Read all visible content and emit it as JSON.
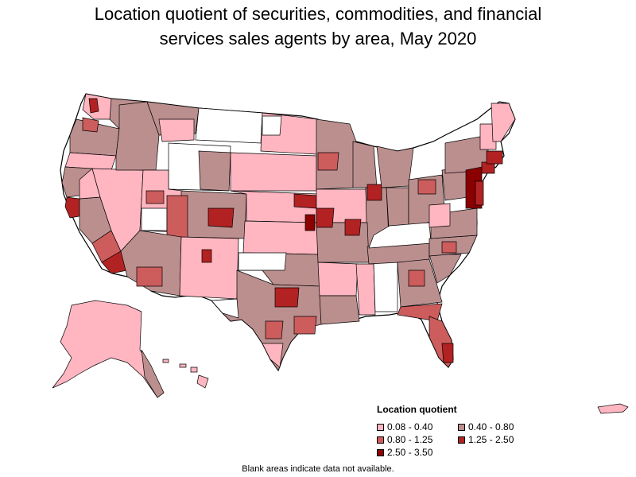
{
  "title_line1": "Location quotient of securities, commodities, and financial",
  "title_line2": "services sales agents by area, May 2020",
  "legend": {
    "title": "Location quotient",
    "items": [
      {
        "label": "0.08 - 0.40",
        "color": "#ffb6c1"
      },
      {
        "label": "0.40 - 0.80",
        "color": "#bc8f8f"
      },
      {
        "label": "0.80 - 1.25",
        "color": "#cd5c5c"
      },
      {
        "label": "1.25 - 2.50",
        "color": "#b22222"
      },
      {
        "label": "2.50 - 3.50",
        "color": "#8b0000"
      }
    ]
  },
  "footnote": "Blank areas indicate data not available.",
  "colors": {
    "no_data": "#ffffff",
    "border": "#000000"
  }
}
